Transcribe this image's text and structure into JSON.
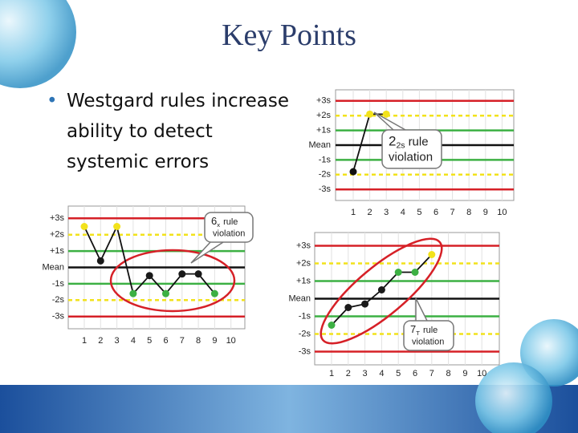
{
  "title": "Key Points",
  "bullet": "Westgard rules increase ability to detect systemic errors",
  "chart_data": [
    {
      "type": "line",
      "categories": [
        "1",
        "2",
        "3",
        "4",
        "5",
        "6",
        "7",
        "8",
        "9",
        "10"
      ],
      "values": [
        -1.8,
        2.1,
        2.1,
        null,
        null,
        null,
        null,
        null,
        null,
        null
      ],
      "point_colors": [
        "none",
        "#f2e21b",
        "#f2e21b",
        "none",
        "none",
        "none",
        "none",
        "none",
        "none",
        "none"
      ],
      "ylim": [
        -3.75,
        3.75
      ],
      "yticks": [
        {
          "value": 3,
          "label": "+3s"
        },
        {
          "value": 2,
          "label": "+2s"
        },
        {
          "value": 1,
          "label": "+1s"
        },
        {
          "value": 0,
          "label": "Mean"
        },
        {
          "value": -1,
          "label": "-1s"
        },
        {
          "value": -2,
          "label": "-2s"
        },
        {
          "value": -3,
          "label": "-3s"
        }
      ],
      "annotation": {
        "rule": "2",
        "sub": "2s",
        "line1": "rule",
        "line2": "violation"
      }
    },
    {
      "type": "line",
      "categories": [
        "1",
        "2",
        "3",
        "4",
        "5",
        "6",
        "7",
        "8",
        "9",
        "10"
      ],
      "values": [
        2.5,
        0.4,
        2.5,
        -1.6,
        -0.5,
        -1.6,
        -0.4,
        -0.4,
        -1.6,
        null
      ],
      "point_colors": [
        "#f2e21b",
        "#1a1a1a",
        "#f2e21b",
        "#3cb043",
        "#1a1a1a",
        "#3cb043",
        "#1a1a1a",
        "#1a1a1a",
        "#3cb043",
        "none"
      ],
      "ylim": [
        -3.75,
        3.75
      ],
      "yticks": [
        {
          "value": 3,
          "label": "+3s"
        },
        {
          "value": 2,
          "label": "+2s"
        },
        {
          "value": 1,
          "label": "+1s"
        },
        {
          "value": 0,
          "label": "Mean"
        },
        {
          "value": -1,
          "label": "-1s"
        },
        {
          "value": -2,
          "label": "-2s"
        },
        {
          "value": -3,
          "label": "-3s"
        }
      ],
      "annotation": {
        "rule": "6",
        "sub": "x",
        "line1": "rule",
        "line2": "violation"
      }
    },
    {
      "type": "line",
      "categories": [
        "1",
        "2",
        "3",
        "4",
        "5",
        "6",
        "7",
        "8",
        "9",
        "10"
      ],
      "values": [
        -1.5,
        -0.5,
        -0.3,
        0.5,
        1.5,
        1.5,
        2.5,
        null,
        null,
        null
      ],
      "point_colors": [
        "#3cb043",
        "#1a1a1a",
        "#1a1a1a",
        "#1a1a1a",
        "#3cb043",
        "#3cb043",
        "#f2e21b",
        "none",
        "none",
        "none"
      ],
      "ylim": [
        -3.75,
        3.75
      ],
      "yticks": [
        {
          "value": 3,
          "label": "+3s"
        },
        {
          "value": 2,
          "label": "+2s"
        },
        {
          "value": 1,
          "label": "+1s"
        },
        {
          "value": 0,
          "label": "Mean"
        },
        {
          "value": -1,
          "label": "-1s"
        },
        {
          "value": -2,
          "label": "-2s"
        },
        {
          "value": -3,
          "label": "-3s"
        }
      ],
      "annotation": {
        "rule": "7",
        "sub": "T",
        "line1": "rule",
        "line2": "violation"
      }
    }
  ]
}
